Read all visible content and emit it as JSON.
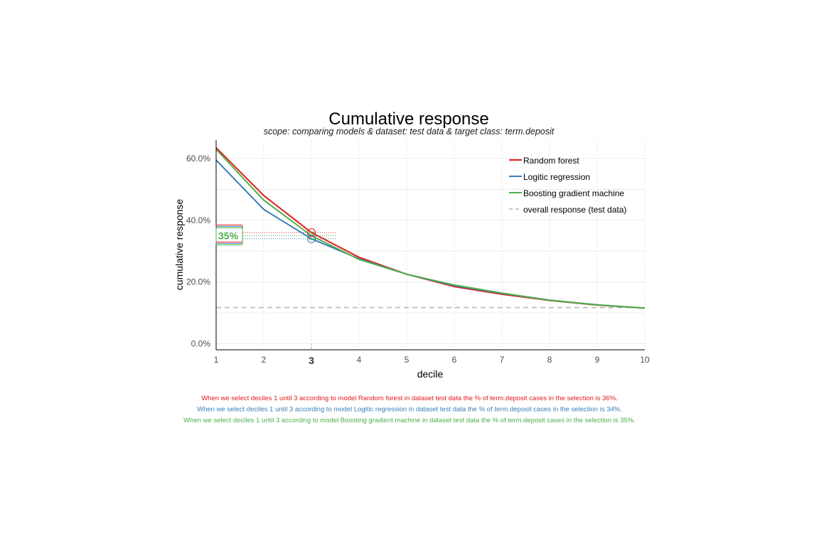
{
  "chart_data": {
    "type": "line",
    "title": "Cumulative response",
    "subtitle": "scope: comparing models & dataset: test data & target class: term.deposit",
    "xlabel": "decile",
    "ylabel": "cumulative response",
    "x": [
      1,
      2,
      3,
      4,
      5,
      6,
      7,
      8,
      9,
      10
    ],
    "x_tick_labels": [
      "1",
      "2",
      "3",
      "4",
      "5",
      "6",
      "7",
      "8",
      "9",
      "10"
    ],
    "highlight_x": 3,
    "xlim": [
      1,
      10
    ],
    "ylim": [
      -0.02,
      0.66
    ],
    "y_ticks": [
      0,
      0.2,
      0.4,
      0.6
    ],
    "y_tick_labels": [
      "0.0%",
      "20.0%",
      "40.0%",
      "60.0%"
    ],
    "grid": true,
    "legend_position": "top-right",
    "series": [
      {
        "name": "Random forest",
        "color": "#E41A1C",
        "values": [
          0.635,
          0.48,
          0.36,
          0.28,
          0.225,
          0.185,
          0.16,
          0.14,
          0.125,
          0.115
        ]
      },
      {
        "name": "Logitic regression",
        "color": "#377EB8",
        "values": [
          0.595,
          0.435,
          0.34,
          0.275,
          0.225,
          0.188,
          0.163,
          0.141,
          0.126,
          0.115
        ]
      },
      {
        "name": "Boosting gradient machine",
        "color": "#4DAF4A",
        "values": [
          0.63,
          0.465,
          0.35,
          0.273,
          0.225,
          0.19,
          0.164,
          0.141,
          0.126,
          0.115
        ]
      }
    ],
    "reference_line": {
      "name": "overall response (test data)",
      "color": "#B3B3B3",
      "value": 0.117
    },
    "annotation": {
      "label": "35%",
      "color": "#4DAF4A",
      "label_colors": [
        "#E41A1C",
        "#377EB8",
        "#4DAF4A"
      ]
    },
    "footnotes": [
      {
        "color": "#E41A1C",
        "text": "When we select deciles 1 until 3 according to model Random forest in dataset test data the % of term.deposit cases in the selection is 36%."
      },
      {
        "color": "#377EB8",
        "text": "When we select deciles 1 until 3 according to model Logitic regression in dataset test data the % of term.deposit cases in the selection is 34%."
      },
      {
        "color": "#4DAF4A",
        "text": "When we select deciles 1 until 3 according to model Boosting gradient machine in dataset test data the % of term.deposit cases in the selection is 35%."
      }
    ]
  }
}
